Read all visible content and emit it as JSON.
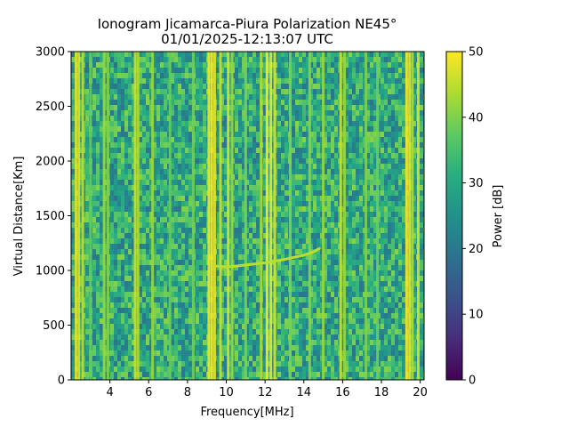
{
  "chart_data": {
    "type": "heatmap",
    "title": "Ionogram Jicamarca-Piura Polarization NE45°",
    "subtitle": "01/01/2025-12:13:07 UTC",
    "xlabel": "Frequency[MHz]",
    "ylabel": "Virtual Distance[Km]",
    "xlim": [
      2.0,
      20.2
    ],
    "ylim": [
      0,
      3000
    ],
    "xticks": [
      4,
      6,
      8,
      10,
      12,
      14,
      16,
      18,
      20
    ],
    "yticks": [
      0,
      500,
      1000,
      1500,
      2000,
      2500,
      3000
    ],
    "colorbar": {
      "label": "Power [dB]",
      "range": [
        0,
        50
      ],
      "ticks": [
        0,
        10,
        20,
        30,
        40,
        50
      ],
      "colormap": "viridis"
    },
    "background_power_db": 30,
    "interference_lines": [
      {
        "freq": 2.25,
        "power": 48
      },
      {
        "freq": 2.4,
        "power": 47
      },
      {
        "freq": 2.6,
        "power": 45
      },
      {
        "freq": 3.0,
        "power": 38
      },
      {
        "freq": 3.7,
        "power": 42
      },
      {
        "freq": 3.9,
        "power": 40
      },
      {
        "freq": 5.3,
        "power": 46
      },
      {
        "freq": 5.45,
        "power": 44
      },
      {
        "freq": 6.2,
        "power": 42
      },
      {
        "freq": 7.1,
        "power": 38
      },
      {
        "freq": 8.3,
        "power": 39
      },
      {
        "freq": 9.1,
        "power": 49
      },
      {
        "freq": 9.25,
        "power": 50
      },
      {
        "freq": 9.4,
        "power": 48
      },
      {
        "freq": 9.7,
        "power": 46
      },
      {
        "freq": 10.1,
        "power": 47
      },
      {
        "freq": 10.3,
        "power": 42
      },
      {
        "freq": 11.0,
        "power": 40
      },
      {
        "freq": 11.8,
        "power": 44
      },
      {
        "freq": 12.1,
        "power": 50
      },
      {
        "freq": 12.3,
        "power": 49
      },
      {
        "freq": 12.5,
        "power": 47
      },
      {
        "freq": 13.3,
        "power": 40
      },
      {
        "freq": 14.3,
        "power": 41
      },
      {
        "freq": 15.0,
        "power": 42
      },
      {
        "freq": 15.9,
        "power": 46
      },
      {
        "freq": 16.1,
        "power": 42
      },
      {
        "freq": 17.2,
        "power": 40
      },
      {
        "freq": 17.8,
        "power": 39
      },
      {
        "freq": 19.3,
        "power": 50
      },
      {
        "freq": 19.45,
        "power": 48
      },
      {
        "freq": 19.6,
        "power": 44
      },
      {
        "freq": 19.9,
        "power": 47
      }
    ],
    "trace": {
      "name": "",
      "power": 45,
      "points": [
        {
          "freq": 9.5,
          "dist": 1040
        },
        {
          "freq": 10.0,
          "dist": 1030
        },
        {
          "freq": 10.5,
          "dist": 1040
        },
        {
          "freq": 11.0,
          "dist": 1050
        },
        {
          "freq": 11.5,
          "dist": 1060
        },
        {
          "freq": 12.0,
          "dist": 1070
        },
        {
          "freq": 12.5,
          "dist": 1085
        },
        {
          "freq": 13.0,
          "dist": 1100
        },
        {
          "freq": 13.5,
          "dist": 1120
        },
        {
          "freq": 14.0,
          "dist": 1140
        },
        {
          "freq": 14.5,
          "dist": 1170
        },
        {
          "freq": 14.8,
          "dist": 1200
        }
      ]
    }
  }
}
